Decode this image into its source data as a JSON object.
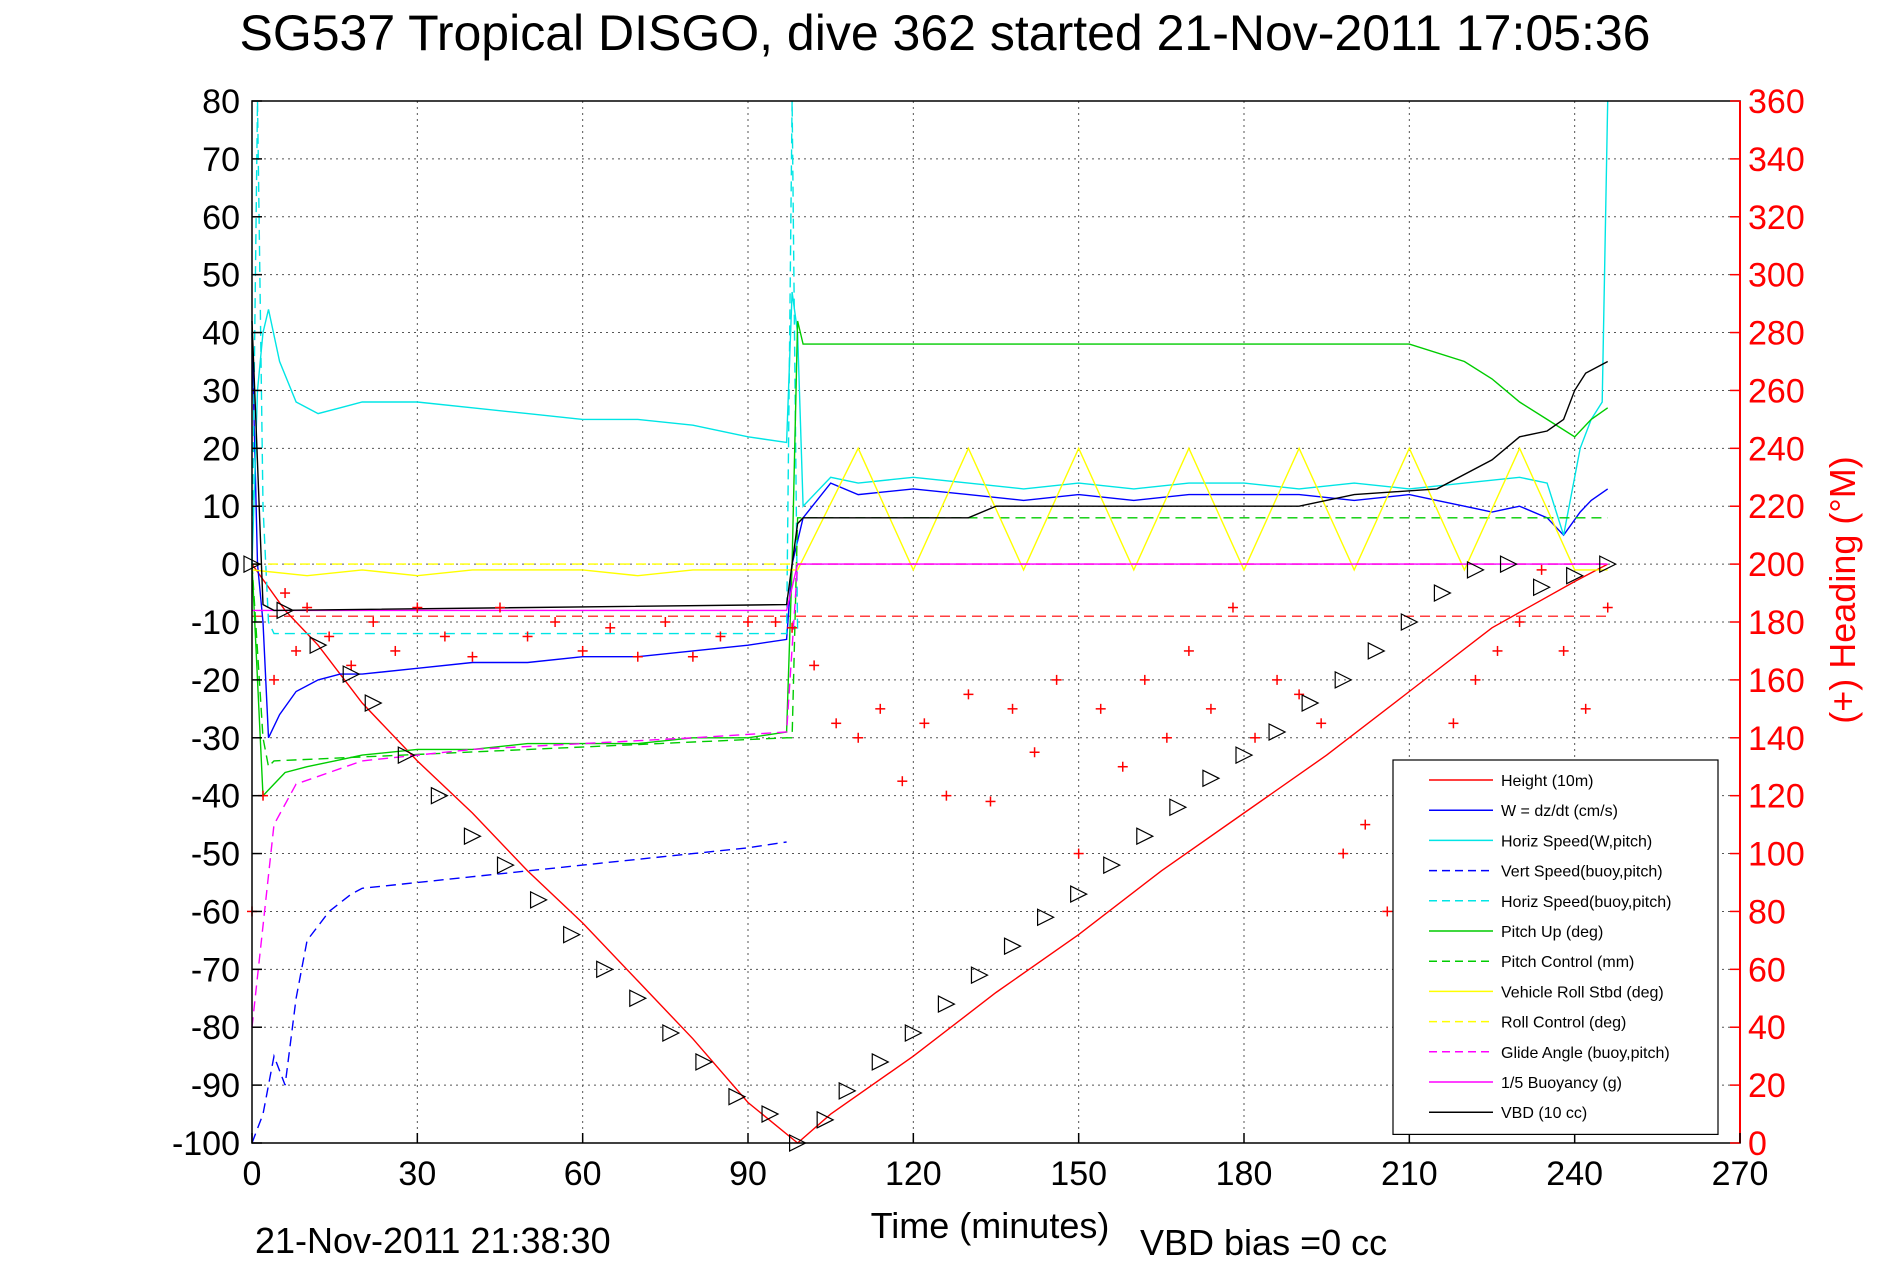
{
  "title": "SG537 Tropical DISGO, dive 362 started 21-Nov-2011 17:05:36",
  "footer_left": "21-Nov-2011 21:38:30",
  "footer_right": "VBD bias =0 cc",
  "chart_data": {
    "type": "line",
    "title": "SG537 Tropical DISGO, dive 362 started 21-Nov-2011 17:05:36",
    "xlabel": "Time (minutes)",
    "ylabel": "",
    "ylabel_right": "(+) Heading (°M)",
    "xlim": [
      0,
      270
    ],
    "ylim": [
      -100,
      80
    ],
    "ylim_right": [
      0,
      360
    ],
    "x_ticks": [
      "0",
      "30",
      "60",
      "90",
      "120",
      "150",
      "180",
      "210",
      "240",
      "270"
    ],
    "y_ticks": [
      "80",
      "70",
      "60",
      "50",
      "40",
      "30",
      "20",
      "10",
      "0",
      "-10",
      "-20",
      "-30",
      "-40",
      "-50",
      "-60",
      "-70",
      "-80",
      "-90",
      "-100"
    ],
    "y_ticks_right": [
      "360",
      "340",
      "320",
      "300",
      "280",
      "260",
      "240",
      "220",
      "200",
      "180",
      "160",
      "140",
      "120",
      "100",
      "80",
      "60",
      "40",
      "20",
      "0"
    ],
    "grid": true,
    "legend_position": "bottom-right",
    "series": [
      {
        "name": "Height (10m)",
        "color": "#ff0000",
        "dash": "solid",
        "x": [
          0,
          6,
          12,
          20,
          30,
          40,
          50,
          60,
          70,
          80,
          90,
          99,
          105,
          120,
          135,
          150,
          165,
          180,
          195,
          210,
          225,
          240,
          246
        ],
        "y": [
          0,
          -8,
          -14,
          -24,
          -34,
          -43,
          -53,
          -62,
          -72,
          -82,
          -93,
          -100,
          -95,
          -85,
          -74,
          -64,
          -53,
          -43,
          -33,
          -22,
          -11,
          -3,
          0
        ]
      },
      {
        "name": "W = dz/dt (cm/s)",
        "color": "#0000ff",
        "dash": "solid",
        "x": [
          0,
          1,
          2,
          3,
          5,
          8,
          12,
          16,
          20,
          30,
          40,
          50,
          60,
          70,
          80,
          90,
          97,
          98,
          100,
          105,
          110,
          120,
          130,
          140,
          150,
          160,
          170,
          180,
          190,
          200,
          210,
          215,
          220,
          225,
          230,
          235,
          238,
          241,
          243,
          246
        ],
        "y": [
          40,
          0,
          -10,
          -30,
          -26,
          -22,
          -20,
          -19,
          -19,
          -18,
          -17,
          -17,
          -16,
          -16,
          -15,
          -14,
          -13,
          0,
          8,
          14,
          12,
          13,
          12,
          11,
          12,
          11,
          12,
          12,
          12,
          11,
          12,
          11,
          10,
          9,
          10,
          8,
          5,
          9,
          11,
          13
        ]
      },
      {
        "name": "Horiz Speed(W,pitch)",
        "color": "#00e5e5",
        "dash": "solid",
        "x": [
          0,
          1,
          2,
          3,
          5,
          8,
          12,
          16,
          20,
          30,
          40,
          50,
          60,
          70,
          80,
          90,
          97,
          98,
          99,
          100,
          105,
          110,
          120,
          130,
          140,
          150,
          160,
          170,
          180,
          190,
          200,
          210,
          220,
          230,
          235,
          238,
          241,
          243,
          245,
          246
        ],
        "y": [
          0,
          30,
          40,
          44,
          35,
          28,
          26,
          27,
          28,
          28,
          27,
          26,
          25,
          25,
          24,
          22,
          21,
          47,
          40,
          10,
          15,
          14,
          15,
          14,
          13,
          14,
          13,
          14,
          14,
          13,
          14,
          13,
          14,
          15,
          14,
          5,
          20,
          25,
          28,
          80
        ]
      },
      {
        "name": "Vert Speed(buoy,pitch)",
        "color": "#0000ff",
        "dash": "dashed",
        "x": [
          0,
          2,
          4,
          6,
          8,
          10,
          14,
          18,
          20,
          30,
          40,
          50,
          60,
          70,
          80,
          90,
          97
        ],
        "y": [
          -100,
          -95,
          -85,
          -90,
          -75,
          -65,
          -60,
          -57,
          -56,
          -55,
          -54,
          -53,
          -52,
          -51,
          -50,
          -49,
          -48
        ]
      },
      {
        "name": "Horiz Speed(buoy,pitch)",
        "color": "#00e5e5",
        "dash": "dashed",
        "x": [
          0,
          1,
          2,
          3,
          4,
          97,
          98,
          99
        ],
        "y": [
          0,
          80,
          10,
          -10,
          -12,
          -12,
          80,
          -12
        ]
      },
      {
        "name": "Pitch Up (deg)",
        "color": "#00cc00",
        "dash": "solid",
        "x": [
          0,
          2,
          4,
          6,
          10,
          15,
          20,
          30,
          40,
          50,
          60,
          70,
          80,
          90,
          97,
          98,
          99,
          100,
          110,
          120,
          130,
          140,
          150,
          160,
          170,
          180,
          190,
          200,
          210,
          220,
          225,
          230,
          235,
          240,
          243,
          246
        ],
        "y": [
          0,
          -40,
          -38,
          -36,
          -35,
          -34,
          -33,
          -32,
          -32,
          -31,
          -31,
          -31,
          -30,
          -30,
          -29,
          0,
          42,
          38,
          38,
          38,
          38,
          38,
          38,
          38,
          38,
          38,
          38,
          38,
          38,
          35,
          32,
          28,
          25,
          22,
          25,
          27
        ]
      },
      {
        "name": "Pitch Control (mm)",
        "color": "#00cc00",
        "dash": "dashed",
        "x": [
          0,
          2,
          3,
          4,
          97,
          98,
          99,
          100,
          246
        ],
        "y": [
          0,
          -30,
          -35,
          -34,
          -30,
          -30,
          8,
          8,
          8
        ]
      },
      {
        "name": "Vehicle Roll Stbd (deg)",
        "color": "#ffff00",
        "dash": "solid",
        "x": [
          0,
          10,
          20,
          30,
          40,
          50,
          60,
          70,
          80,
          90,
          97,
          99,
          110,
          120,
          130,
          140,
          150,
          160,
          170,
          180,
          190,
          200,
          210,
          220,
          230,
          240,
          246
        ],
        "y": [
          -1,
          -2,
          -1,
          -2,
          -1,
          -1,
          -1,
          -2,
          -1,
          -1,
          -1,
          -1,
          20,
          -1,
          20,
          -1,
          20,
          -1,
          20,
          -1,
          20,
          -1,
          20,
          -1,
          20,
          -1,
          -1
        ]
      },
      {
        "name": "Roll Control (deg)",
        "color": "#ffff00",
        "dash": "dashed",
        "x": [
          0,
          97,
          99,
          246
        ],
        "y": [
          0,
          0,
          0,
          0
        ]
      },
      {
        "name": "Glide Angle (buoy,pitch)",
        "color": "#ff00ff",
        "dash": "dashed",
        "x": [
          0,
          4,
          8,
          20,
          40,
          60,
          80,
          97,
          99,
          246
        ],
        "y": [
          -80,
          -45,
          -38,
          -34,
          -32,
          -31,
          -30,
          -29,
          0,
          0
        ]
      },
      {
        "name": "1/5 Buoyancy (g)",
        "color": "#ff00ff",
        "dash": "solid",
        "x": [
          0,
          97,
          99,
          246
        ],
        "y": [
          -8,
          -8,
          0,
          0
        ]
      },
      {
        "name": "VBD (10 cc)",
        "color": "#000000",
        "dash": "solid",
        "x": [
          0,
          2,
          4,
          97,
          99,
          100,
          130,
          135,
          190,
          200,
          215,
          225,
          230,
          235,
          238,
          240,
          242,
          246
        ],
        "y": [
          42,
          -7,
          -8,
          -7,
          7,
          8,
          8,
          10,
          10,
          12,
          13,
          18,
          22,
          23,
          25,
          30,
          33,
          35
        ]
      }
    ],
    "heading_series": {
      "name": "(+) Heading (°M)",
      "color": "#ff0000",
      "marker": "+",
      "axis": "right",
      "x": [
        0,
        2,
        4,
        6,
        8,
        10,
        14,
        18,
        22,
        26,
        30,
        35,
        40,
        45,
        50,
        55,
        60,
        65,
        70,
        75,
        80,
        85,
        90,
        95,
        98,
        102,
        106,
        110,
        114,
        118,
        122,
        126,
        130,
        134,
        138,
        142,
        146,
        150,
        154,
        158,
        162,
        166,
        170,
        174,
        178,
        182,
        186,
        190,
        194,
        198,
        202,
        206,
        210,
        214,
        218,
        222,
        226,
        230,
        234,
        238,
        242,
        246
      ],
      "y": [
        80,
        120,
        160,
        190,
        170,
        185,
        175,
        165,
        180,
        170,
        185,
        175,
        168,
        185,
        175,
        180,
        170,
        178,
        168,
        180,
        168,
        175,
        180,
        180,
        178,
        165,
        145,
        140,
        150,
        125,
        145,
        120,
        155,
        118,
        150,
        135,
        160,
        100,
        150,
        130,
        160,
        140,
        170,
        150,
        185,
        140,
        160,
        155,
        145,
        100,
        110,
        80,
        130,
        120,
        145,
        160,
        170,
        180,
        198,
        170,
        150,
        185
      ]
    },
    "reference_lines": [
      {
        "name": "heading-ref",
        "color": "#ff0000",
        "dash": "dashed",
        "axis": "right",
        "value": 182
      }
    ],
    "vbd_markers": {
      "x": [
        0,
        6,
        12,
        18,
        22,
        28,
        34,
        40,
        46,
        52,
        58,
        64,
        70,
        76,
        82,
        88,
        94,
        99,
        104,
        108,
        114,
        120,
        126,
        132,
        138,
        144,
        150,
        156,
        162,
        168,
        174,
        180,
        186,
        192,
        198,
        204,
        210,
        216,
        222,
        228,
        234,
        240,
        246
      ],
      "y": [
        0,
        -8,
        -14,
        -19,
        -24,
        -33,
        -40,
        -47,
        -52,
        -58,
        -64,
        -70,
        -75,
        -81,
        -86,
        -92,
        -95,
        -100,
        -96,
        -91,
        -86,
        -81,
        -76,
        -71,
        -66,
        -61,
        -57,
        -52,
        -47,
        -42,
        -37,
        -33,
        -29,
        -24,
        -20,
        -15,
        -10,
        -5,
        -1,
        0,
        -4,
        -2,
        0
      ]
    }
  }
}
